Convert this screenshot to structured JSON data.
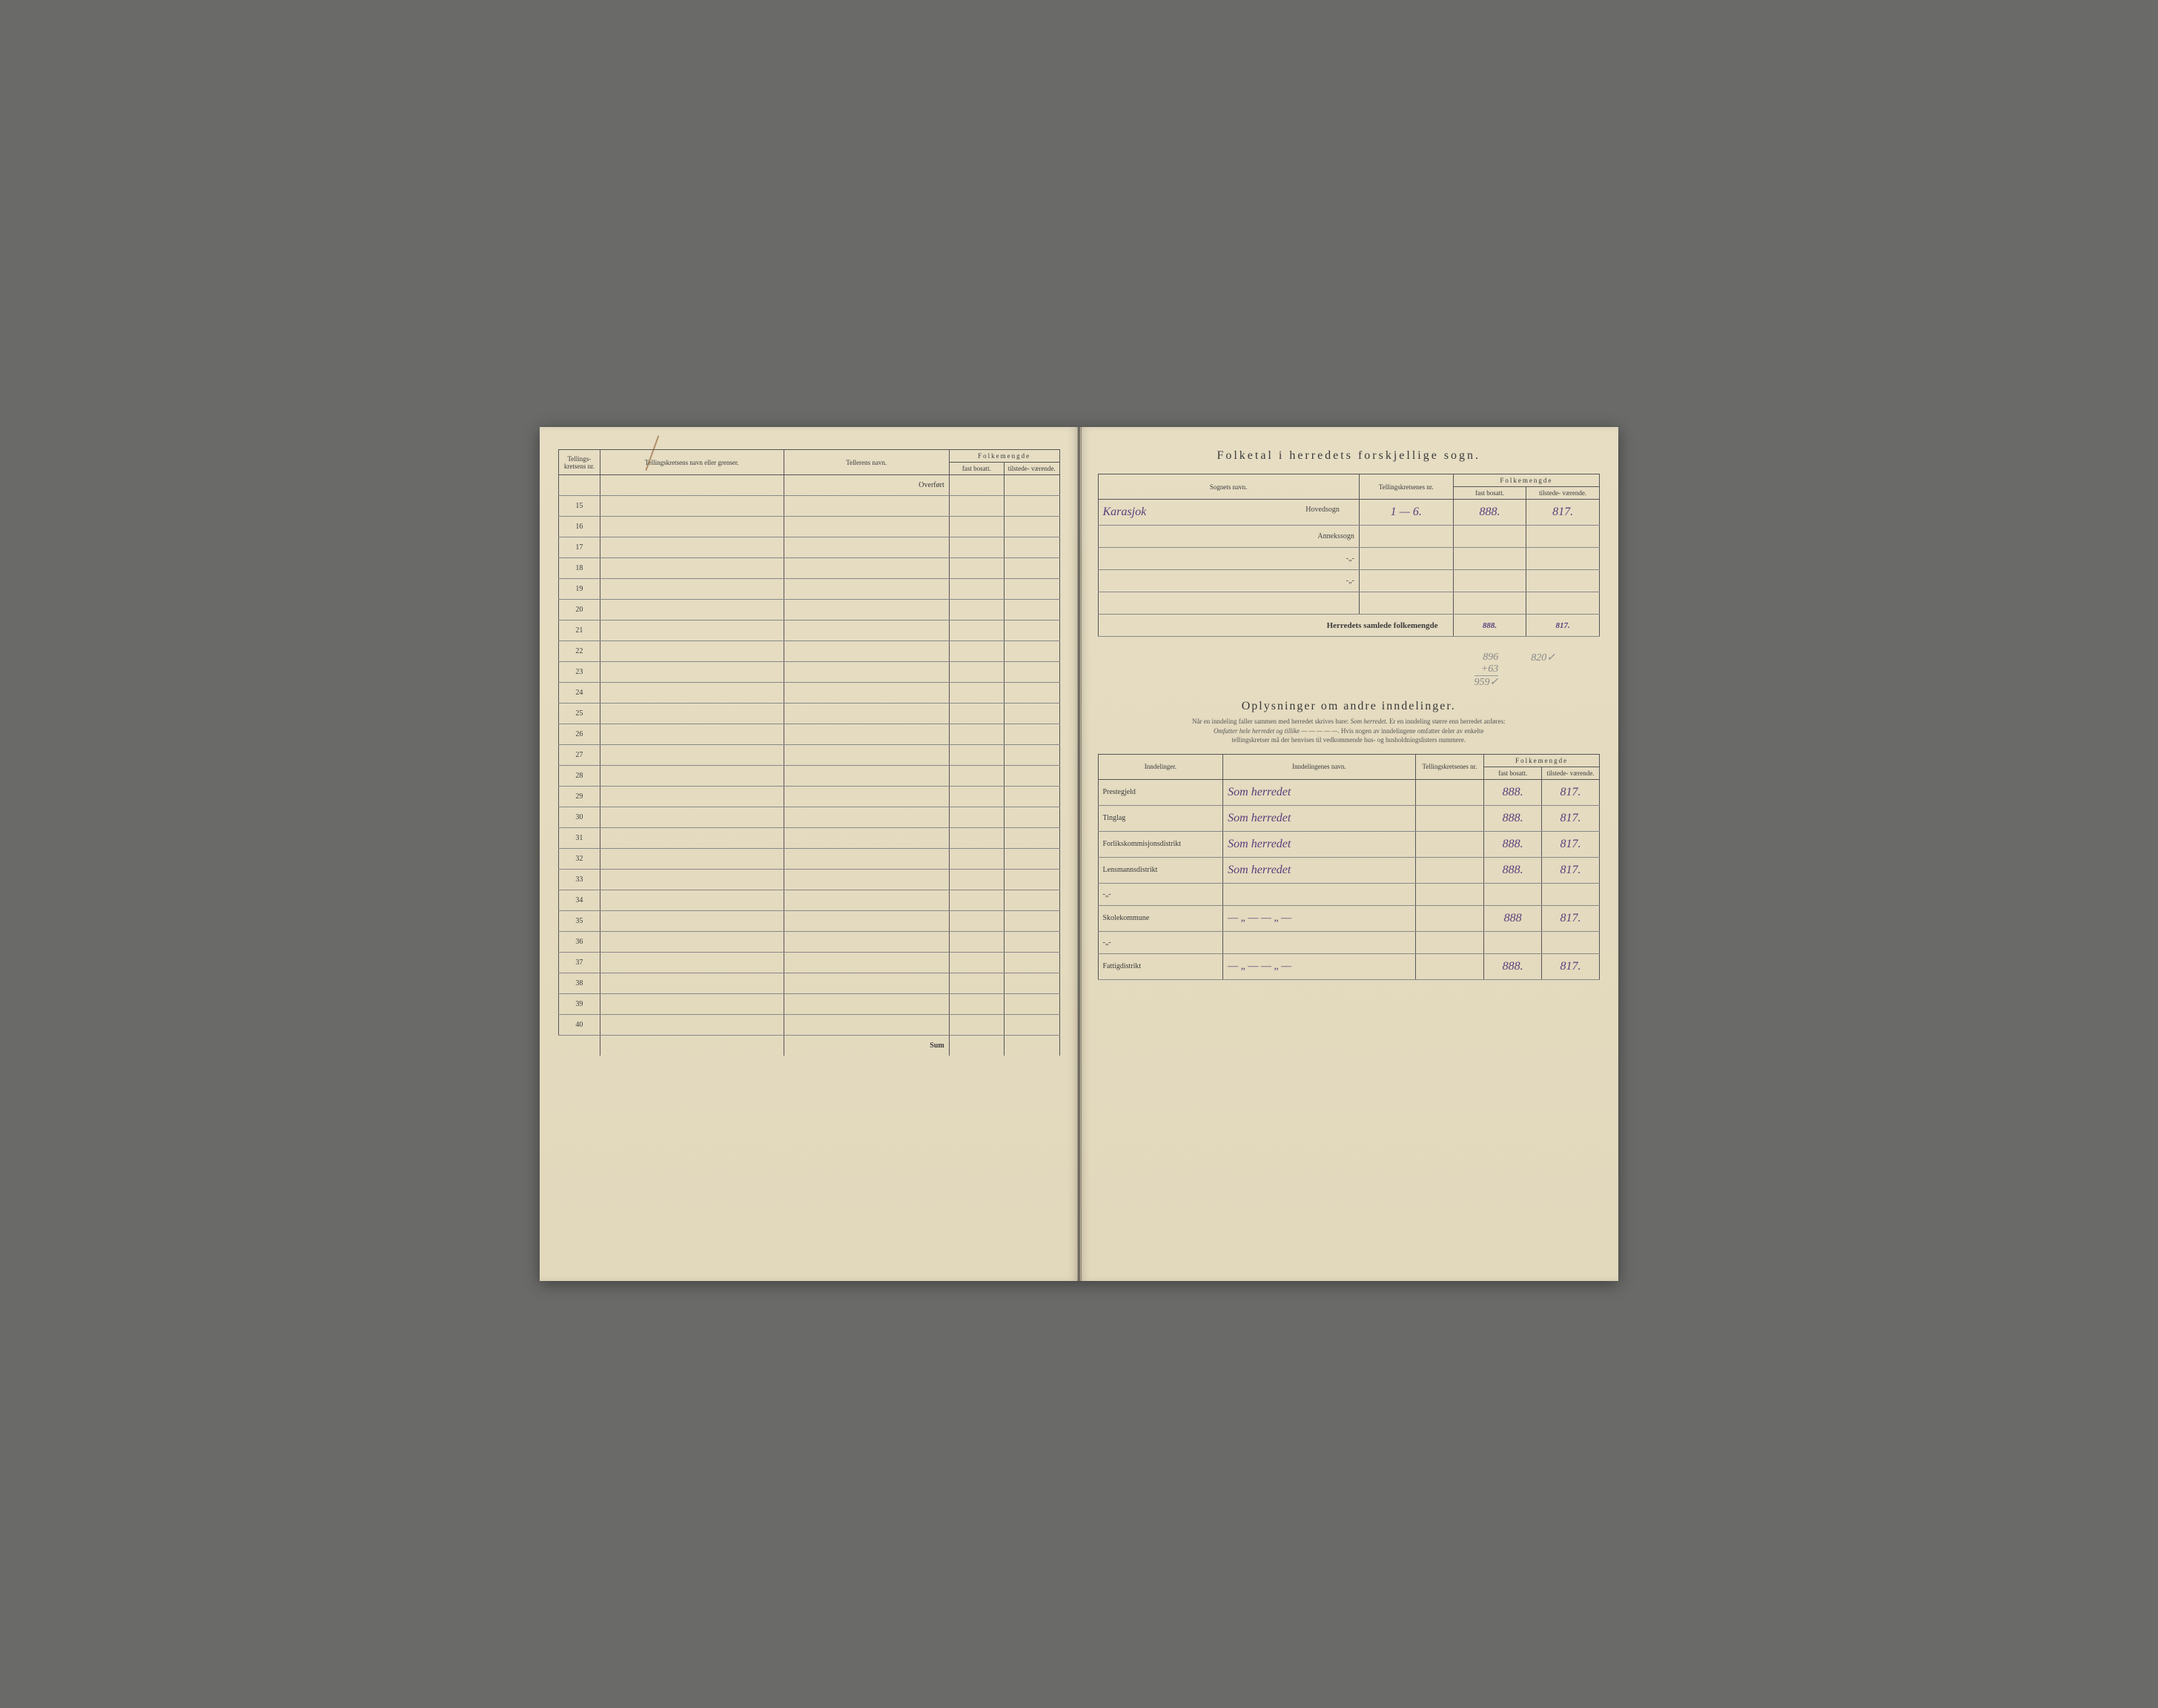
{
  "left_page": {
    "headers": {
      "nr": "Tellings-\nkretsens\nnr.",
      "krets_navn": "Tellingskretsens navn eller grenser.",
      "teller_navn": "Tellerens navn.",
      "folkemengde": "Folkemengde",
      "fast": "fast\nbosatt.",
      "tilstede": "tilstede-\nværende."
    },
    "overfort_label": "Overført",
    "row_numbers": [
      "15",
      "16",
      "17",
      "18",
      "19",
      "20",
      "21",
      "22",
      "23",
      "24",
      "25",
      "26",
      "27",
      "28",
      "29",
      "30",
      "31",
      "32",
      "33",
      "34",
      "35",
      "36",
      "37",
      "38",
      "39",
      "40"
    ],
    "sum_label": "Sum"
  },
  "right_page": {
    "title1": "Folketal i herredets forskjellige sogn.",
    "table1": {
      "headers": {
        "sogn_navn": "Sognets navn.",
        "krets_nr": "Tellingskretsenes\nnr.",
        "folkemengde": "Folkemengde",
        "fast": "fast\nbosatt.",
        "tilstede": "tilstede-\nværende."
      },
      "row_labels": {
        "hovedsogn": "Hovedsogn",
        "annekssogn": "Annekssogn",
        "ditto1": "-„-",
        "ditto2": "-„-"
      },
      "hovedsogn_name": "Karasjok",
      "hovedsogn_krets": "1 — 6.",
      "hovedsogn_fast": "888.",
      "hovedsogn_tilstede": "817.",
      "samlede_label": "Herredets samlede folkemengde",
      "samlede_fast": "888.",
      "samlede_tilstede": "817.",
      "pencil_calc_1": "896",
      "pencil_calc_2": "+63",
      "pencil_calc_3": "959✓",
      "pencil_calc_right": "820✓"
    },
    "title2": "Oplysninger om andre inndelinger.",
    "desc_line1_a": "Når en inndeling faller sammen med herredet skrives bare: ",
    "desc_line1_em": "Som herredet.",
    "desc_line1_b": " Er en inndeling større enn herredet anføres:",
    "desc_line2_em": "Omfatter hele herredet og tillike — — — — —.",
    "desc_line2_b": " Hvis nogen av inndelingene omfatter deler av enkelte",
    "desc_line3": "tellingskretser må der henvises til vedkommende hus- og husholdningslisters nummere.",
    "table2": {
      "headers": {
        "inndelinger": "Inndelinger.",
        "navn": "Inndelingenes navn.",
        "krets_nr": "Tellingskretsenes\nnr.",
        "folkemengde": "Folkemengde",
        "fast": "fast\nbosatt.",
        "tilstede": "tilstede-\nværende."
      },
      "rows": [
        {
          "label": "Prestegjeld",
          "navn": "Som herredet",
          "fast": "888.",
          "tilstede": "817."
        },
        {
          "label": "Tinglag",
          "navn": "Som herredet",
          "fast": "888.",
          "tilstede": "817."
        },
        {
          "label": "Forlikskommisjonsdistrikt",
          "navn": "Som herredet",
          "fast": "888.",
          "tilstede": "817."
        },
        {
          "label": "Lensmannsdistrikt",
          "navn": "Som herredet",
          "fast": "888.",
          "tilstede": "817."
        },
        {
          "label": "-„-",
          "navn": "",
          "fast": "",
          "tilstede": ""
        },
        {
          "label": "Skolekommune",
          "navn": "— „ —   — „ —",
          "fast": "888",
          "tilstede": "817."
        },
        {
          "label": "-„-",
          "navn": "",
          "fast": "",
          "tilstede": ""
        },
        {
          "label": "Fattigdistrikt",
          "navn": "— „ —   — „ —",
          "fast": "888.",
          "tilstede": "817."
        }
      ]
    }
  },
  "colors": {
    "paper": "#e6ddc3",
    "ink_printed": "#3a3a3a",
    "ink_handwritten": "#5a3d7a",
    "ink_pencil": "#888888",
    "border": "#555555"
  }
}
